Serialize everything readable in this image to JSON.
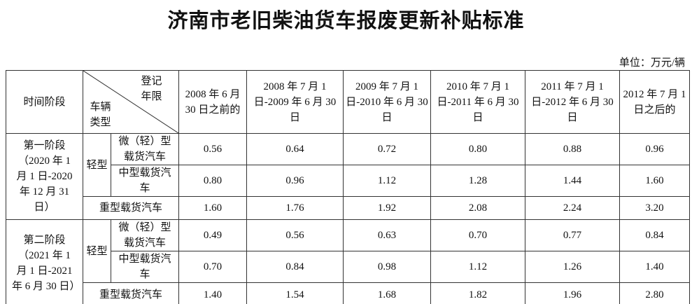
{
  "title": "济南市老旧柴油货车报废更新补贴标准",
  "unit": "单位：万元/辆",
  "table": {
    "stage_header": "时间阶段",
    "corner": {
      "top": "登记年限",
      "bottom": "车辆类型"
    },
    "columns": [
      "2008 年 6 月 30 日之前的",
      "2008 年 7 月 1 日-2009 年 6 月 30 日",
      "2009 年 7 月 1 日-2010 年 6 月 30 日",
      "2010 年 7 月 1 日-2011 年 6 月 30 日",
      "2011 年 7 月 1 日-2012 年 6 月 30 日",
      "2012 年 7 月 1 日之后的"
    ],
    "groups": [
      {
        "stage": "第一阶段（2020 年 1 月 1 日-2020 年 12 月 31 日）",
        "light": "轻型",
        "rows": [
          {
            "type": "微（轻）型载货汽车",
            "values": [
              "0.56",
              "0.64",
              "0.72",
              "0.80",
              "0.88",
              "0.96"
            ]
          },
          {
            "type": "中型载货汽车",
            "values": [
              "0.80",
              "0.96",
              "1.12",
              "1.28",
              "1.44",
              "1.60"
            ]
          },
          {
            "type": "重型载货汽车",
            "values": [
              "1.60",
              "1.76",
              "1.92",
              "2.08",
              "2.24",
              "3.20"
            ]
          }
        ]
      },
      {
        "stage": "第二阶段（2021 年 1 月 1 日-2021 年 6 月 30 日）",
        "light": "轻型",
        "rows": [
          {
            "type": "微（轻）型载货汽车",
            "values": [
              "0.49",
              "0.56",
              "0.63",
              "0.70",
              "0.77",
              "0.84"
            ]
          },
          {
            "type": "中型载货汽车",
            "values": [
              "0.70",
              "0.84",
              "0.98",
              "1.12",
              "1.26",
              "1.40"
            ]
          },
          {
            "type": "重型载货汽车",
            "values": [
              "1.40",
              "1.54",
              "1.68",
              "1.82",
              "1.96",
              "2.80"
            ]
          }
        ]
      }
    ]
  }
}
